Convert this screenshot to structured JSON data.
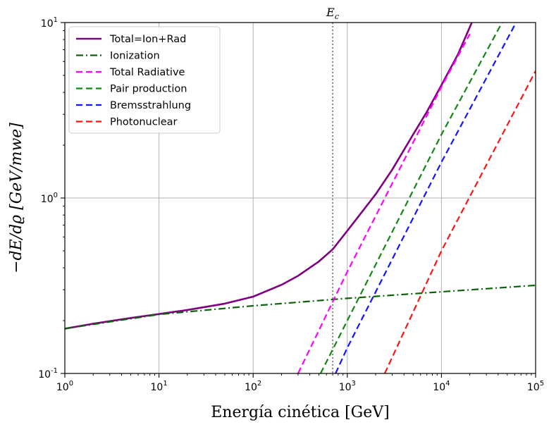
{
  "chart_data": {
    "type": "line",
    "xscale": "log",
    "yscale": "log",
    "xlim": [
      1,
      100000
    ],
    "ylim": [
      0.1,
      10
    ],
    "xlabel": "Energía cinética [GeV]",
    "ylabel": "−dE/dϱ [GeV/mwe]",
    "grid": true,
    "legend_position": "upper-left",
    "x_ticks": [
      {
        "value": 1,
        "base": "10",
        "exp": "0"
      },
      {
        "value": 10,
        "base": "10",
        "exp": "1"
      },
      {
        "value": 100,
        "base": "10",
        "exp": "2"
      },
      {
        "value": 1000,
        "base": "10",
        "exp": "3"
      },
      {
        "value": 10000,
        "base": "10",
        "exp": "4"
      },
      {
        "value": 100000,
        "base": "10",
        "exp": "5"
      }
    ],
    "y_ticks": [
      {
        "value": 0.1,
        "base": "10",
        "exp": "-1"
      },
      {
        "value": 1,
        "base": "10",
        "exp": "0"
      },
      {
        "value": 10,
        "base": "10",
        "exp": "1"
      }
    ],
    "vline": {
      "x": 700,
      "label": "E",
      "label_sub": "c",
      "color": "#555555"
    },
    "series": [
      {
        "name": "Total=Ion+Rad",
        "color": "#800080",
        "dash": "solid",
        "width": 2.6,
        "x": [
          1,
          2,
          5,
          10,
          20,
          50,
          100,
          200,
          300,
          500,
          700,
          1000,
          2000,
          3000,
          5000,
          7000,
          10000,
          15000,
          21000
        ],
        "y": [
          0.18,
          0.192,
          0.207,
          0.218,
          0.23,
          0.25,
          0.274,
          0.32,
          0.36,
          0.435,
          0.51,
          0.65,
          1.05,
          1.45,
          2.3,
          3.1,
          4.4,
          6.6,
          10
        ]
      },
      {
        "name": "Ionization",
        "color": "#0b640b",
        "dash": "dashdot",
        "width": 2.2,
        "x": [
          1,
          10,
          100,
          1000,
          10000,
          100000
        ],
        "y": [
          0.18,
          0.217,
          0.243,
          0.268,
          0.292,
          0.318
        ]
      },
      {
        "name": "Total Radiative",
        "color": "#ff00ff",
        "dash": "dashed",
        "width": 2.2,
        "x": [
          300,
          1000,
          10000,
          20000
        ],
        "y": [
          0.1,
          0.38,
          4.3,
          8.6
        ]
      },
      {
        "name": "Pair production",
        "color": "#118811",
        "dash": "dashed",
        "width": 2.2,
        "x": [
          520,
          1000,
          10000,
          44000
        ],
        "y": [
          0.1,
          0.2,
          2.3,
          10
        ]
      },
      {
        "name": "Bremsstrahlung",
        "color": "#1414ff",
        "dash": "dashed",
        "width": 2.2,
        "x": [
          750,
          1000,
          10000,
          62000
        ],
        "y": [
          0.1,
          0.14,
          1.6,
          10
        ]
      },
      {
        "name": "Photonuclear",
        "color": "#ff1414",
        "dash": "dashed",
        "width": 2.2,
        "x": [
          2500,
          10000,
          100000
        ],
        "y": [
          0.1,
          0.5,
          5.3
        ]
      }
    ]
  }
}
